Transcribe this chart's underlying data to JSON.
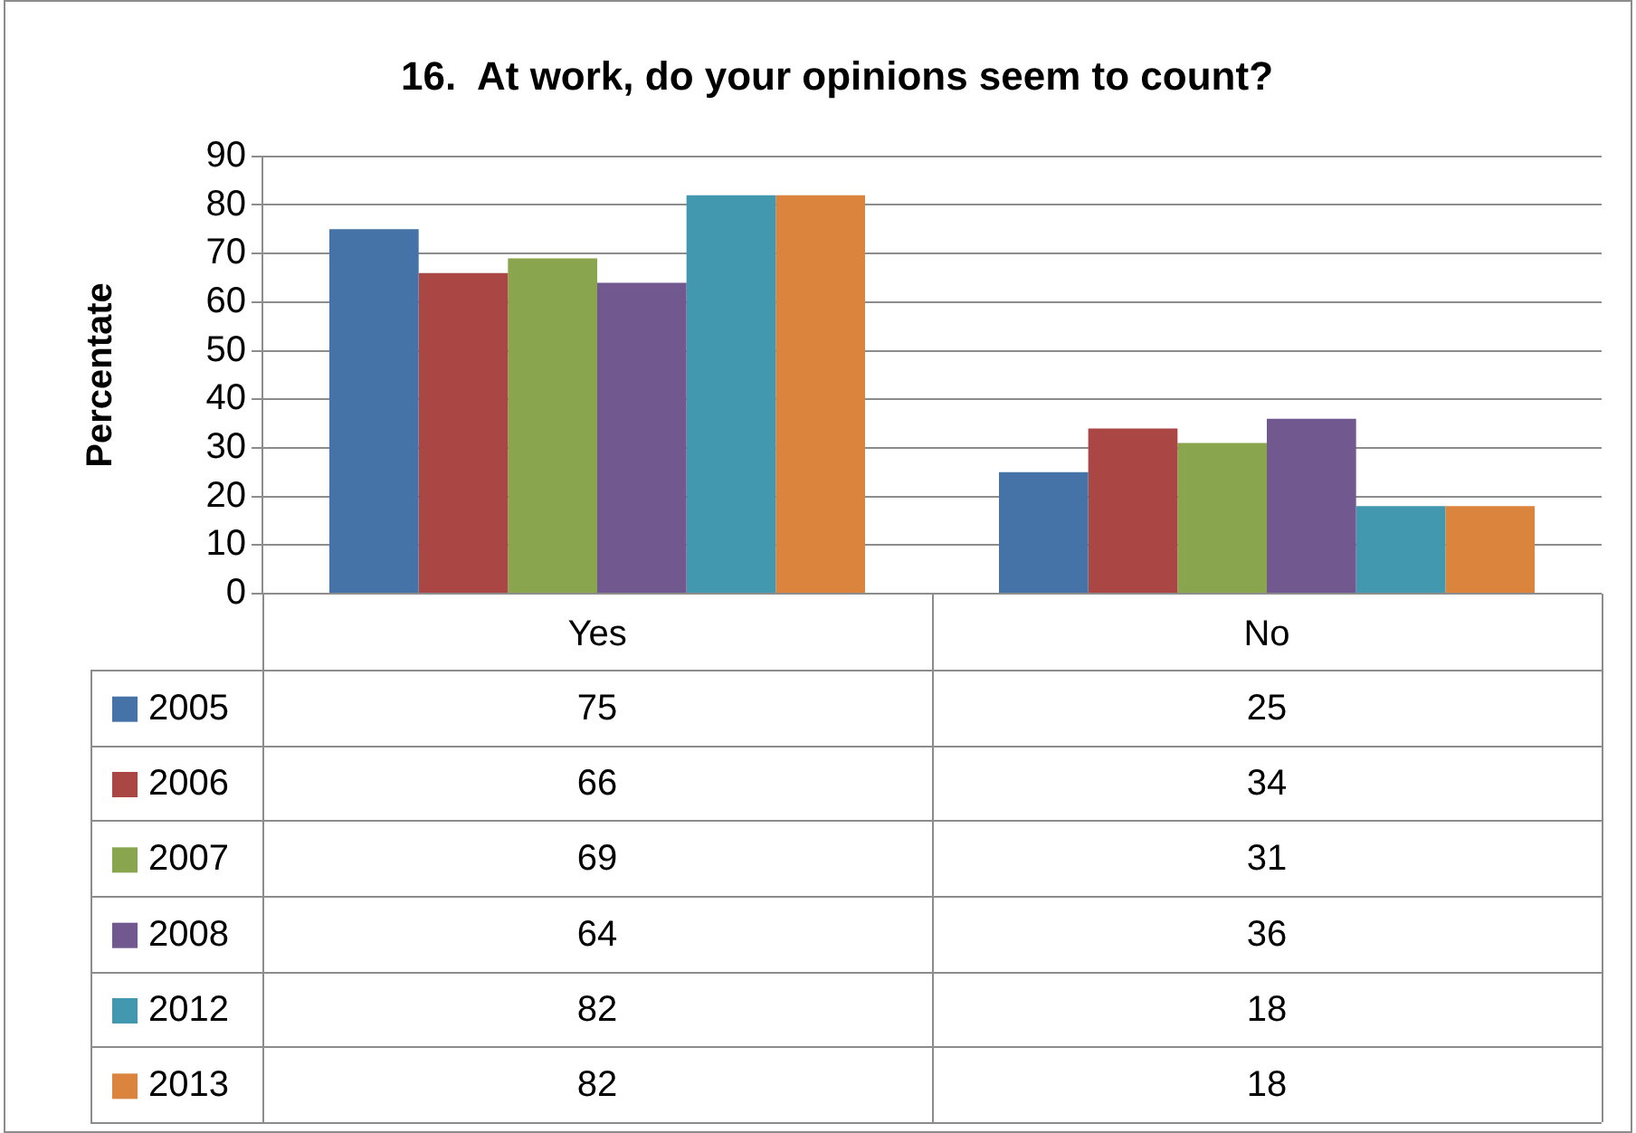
{
  "chart_data": {
    "type": "bar",
    "title": "16.  At work, do your opinions seem to count?",
    "ylabel": "Percentate",
    "categories": [
      "Yes",
      "No"
    ],
    "series": [
      {
        "name": "2005",
        "color": "#4572a7",
        "values": [
          75,
          25
        ]
      },
      {
        "name": "2006",
        "color": "#aa4643",
        "values": [
          66,
          34
        ]
      },
      {
        "name": "2007",
        "color": "#89a54e",
        "values": [
          69,
          31
        ]
      },
      {
        "name": "2008",
        "color": "#71588f",
        "values": [
          64,
          36
        ]
      },
      {
        "name": "2012",
        "color": "#4198af",
        "values": [
          82,
          18
        ]
      },
      {
        "name": "2013",
        "color": "#db843d",
        "values": [
          82,
          18
        ]
      }
    ],
    "ylim": [
      0,
      90
    ],
    "yticks": [
      0,
      10,
      20,
      30,
      40,
      50,
      60,
      70,
      80,
      90
    ],
    "grid": "y",
    "data_labels": true,
    "legend": "bottom left"
  }
}
